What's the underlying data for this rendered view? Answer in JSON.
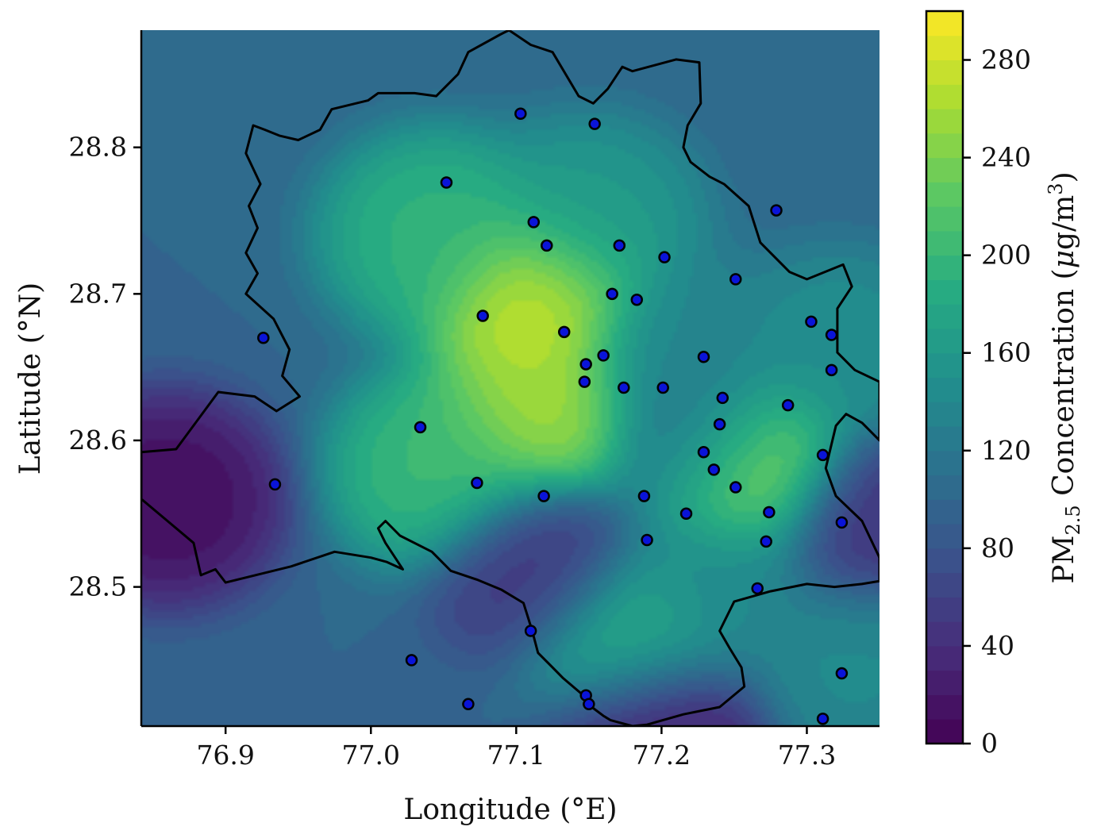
{
  "chart_data": {
    "type": "heatmap",
    "title": "",
    "xlabel": "Longitude (°E)",
    "ylabel": "Latitude (°N)",
    "xlim": [
      76.842,
      77.35
    ],
    "ylim": [
      28.405,
      28.88
    ],
    "x_ticks": [
      "76.9",
      "77.0",
      "77.1",
      "77.2",
      "77.3"
    ],
    "y_ticks": [
      "28.5",
      "28.6",
      "28.7",
      "28.8"
    ],
    "x_tick_values": [
      76.9,
      77.0,
      77.1,
      77.2,
      77.3
    ],
    "y_tick_values": [
      28.5,
      28.6,
      28.7,
      28.8
    ],
    "colorbar": {
      "label_pre": "PM",
      "label_sub": "2.5",
      "label_mid": " Concentration (",
      "label_mu": "μ",
      "label_unit": "g/m",
      "label_sup": "3",
      "label_post": ")",
      "range": [
        0,
        300
      ],
      "ticks": [
        "0",
        "40",
        "80",
        "120",
        "160",
        "200",
        "240",
        "280"
      ],
      "tick_values": [
        0,
        40,
        80,
        120,
        160,
        200,
        240,
        280
      ],
      "colormap": "viridis"
    },
    "grid": false,
    "hotspots": [
      {
        "lon": 77.115,
        "lat": 28.695,
        "value": 290
      },
      {
        "lon": 77.12,
        "lat": 28.62,
        "value": 270
      },
      {
        "lon": 77.26,
        "lat": 28.582,
        "value": 295
      },
      {
        "lon": 77.05,
        "lat": 28.58,
        "value": 210
      },
      {
        "lon": 77.045,
        "lat": 28.74,
        "value": 200
      },
      {
        "lon": 77.18,
        "lat": 28.465,
        "value": 200
      },
      {
        "lon": 77.15,
        "lat": 28.75,
        "value": 165
      },
      {
        "lon": 77.21,
        "lat": 28.66,
        "value": 140
      },
      {
        "lon": 77.32,
        "lat": 28.66,
        "value": 150
      },
      {
        "lon": 77.33,
        "lat": 28.45,
        "value": 145
      },
      {
        "lon": 77.24,
        "lat": 28.5,
        "value": 140
      },
      {
        "lon": 76.86,
        "lat": 28.56,
        "value": 5
      },
      {
        "lon": 77.2,
        "lat": 28.405,
        "value": 15
      },
      {
        "lon": 77.115,
        "lat": 28.515,
        "value": 45
      },
      {
        "lon": 77.34,
        "lat": 28.545,
        "value": 40
      },
      {
        "lon": 77.23,
        "lat": 28.6,
        "value": 90
      }
    ],
    "stations": [
      {
        "lon": 77.103,
        "lat": 28.823
      },
      {
        "lon": 77.154,
        "lat": 28.816
      },
      {
        "lon": 77.052,
        "lat": 28.776
      },
      {
        "lon": 77.279,
        "lat": 28.757
      },
      {
        "lon": 77.112,
        "lat": 28.749
      },
      {
        "lon": 77.121,
        "lat": 28.733
      },
      {
        "lon": 77.171,
        "lat": 28.733
      },
      {
        "lon": 77.202,
        "lat": 28.725
      },
      {
        "lon": 77.251,
        "lat": 28.71
      },
      {
        "lon": 77.166,
        "lat": 28.7
      },
      {
        "lon": 77.183,
        "lat": 28.696
      },
      {
        "lon": 77.077,
        "lat": 28.685
      },
      {
        "lon": 77.303,
        "lat": 28.681
      },
      {
        "lon": 77.133,
        "lat": 28.674
      },
      {
        "lon": 77.317,
        "lat": 28.672
      },
      {
        "lon": 76.926,
        "lat": 28.67
      },
      {
        "lon": 77.16,
        "lat": 28.658
      },
      {
        "lon": 77.229,
        "lat": 28.657
      },
      {
        "lon": 77.148,
        "lat": 28.652
      },
      {
        "lon": 77.317,
        "lat": 28.648
      },
      {
        "lon": 77.147,
        "lat": 28.64
      },
      {
        "lon": 77.174,
        "lat": 28.636
      },
      {
        "lon": 77.201,
        "lat": 28.636
      },
      {
        "lon": 77.242,
        "lat": 28.629
      },
      {
        "lon": 77.287,
        "lat": 28.624
      },
      {
        "lon": 77.24,
        "lat": 28.611
      },
      {
        "lon": 77.034,
        "lat": 28.609
      },
      {
        "lon": 77.229,
        "lat": 28.592
      },
      {
        "lon": 77.311,
        "lat": 28.59
      },
      {
        "lon": 77.236,
        "lat": 28.58
      },
      {
        "lon": 77.073,
        "lat": 28.571
      },
      {
        "lon": 76.934,
        "lat": 28.57
      },
      {
        "lon": 77.251,
        "lat": 28.568
      },
      {
        "lon": 77.119,
        "lat": 28.562
      },
      {
        "lon": 77.188,
        "lat": 28.562
      },
      {
        "lon": 77.274,
        "lat": 28.551
      },
      {
        "lon": 77.217,
        "lat": 28.55
      },
      {
        "lon": 77.324,
        "lat": 28.544
      },
      {
        "lon": 77.19,
        "lat": 28.532
      },
      {
        "lon": 77.272,
        "lat": 28.531
      },
      {
        "lon": 77.266,
        "lat": 28.499
      },
      {
        "lon": 77.11,
        "lat": 28.47
      },
      {
        "lon": 77.028,
        "lat": 28.45
      },
      {
        "lon": 77.324,
        "lat": 28.441
      },
      {
        "lon": 77.148,
        "lat": 28.426
      },
      {
        "lon": 77.067,
        "lat": 28.42
      },
      {
        "lon": 77.15,
        "lat": 28.42
      },
      {
        "lon": 77.311,
        "lat": 28.41
      }
    ],
    "boundary": [
      [
        77.095,
        28.88
      ],
      [
        77.089,
        28.877
      ],
      [
        77.067,
        28.865
      ],
      [
        77.06,
        28.85
      ],
      [
        77.045,
        28.835
      ],
      [
        77.03,
        28.837
      ],
      [
        77.005,
        28.837
      ],
      [
        76.998,
        28.832
      ],
      [
        76.973,
        28.826
      ],
      [
        76.965,
        28.812
      ],
      [
        76.95,
        28.805
      ],
      [
        76.937,
        28.808
      ],
      [
        76.927,
        28.812
      ],
      [
        76.919,
        28.815
      ],
      [
        76.914,
        28.796
      ],
      [
        76.924,
        28.775
      ],
      [
        76.916,
        28.76
      ],
      [
        76.922,
        28.745
      ],
      [
        76.914,
        28.728
      ],
      [
        76.922,
        28.714
      ],
      [
        76.914,
        28.7
      ],
      [
        76.933,
        28.683
      ],
      [
        76.944,
        28.662
      ],
      [
        76.939,
        28.644
      ],
      [
        76.951,
        28.63
      ],
      [
        76.935,
        28.62
      ],
      [
        76.92,
        28.63
      ],
      [
        76.895,
        28.633
      ],
      [
        76.866,
        28.594
      ],
      [
        76.842,
        28.592
      ],
      [
        76.842,
        28.56
      ],
      [
        76.86,
        28.545
      ],
      [
        76.878,
        28.53
      ],
      [
        76.883,
        28.508
      ],
      [
        76.893,
        28.512
      ],
      [
        76.9,
        28.503
      ],
      [
        76.945,
        28.514
      ],
      [
        76.975,
        28.524
      ],
      [
        77.0,
        28.52
      ],
      [
        77.011,
        28.517
      ],
      [
        77.022,
        28.512
      ],
      [
        77.01,
        28.53
      ],
      [
        77.005,
        28.54
      ],
      [
        77.01,
        28.545
      ],
      [
        77.02,
        28.535
      ],
      [
        77.042,
        28.524
      ],
      [
        77.055,
        28.511
      ],
      [
        77.073,
        28.505
      ],
      [
        77.09,
        28.498
      ],
      [
        77.105,
        28.489
      ],
      [
        77.111,
        28.47
      ],
      [
        77.115,
        28.455
      ],
      [
        77.125,
        28.445
      ],
      [
        77.132,
        28.438
      ],
      [
        77.145,
        28.427
      ],
      [
        77.152,
        28.418
      ],
      [
        77.16,
        28.412
      ],
      [
        77.165,
        28.409
      ],
      [
        77.18,
        28.405
      ],
      [
        77.19,
        28.406
      ],
      [
        77.215,
        28.413
      ],
      [
        77.24,
        28.418
      ],
      [
        77.257,
        28.432
      ],
      [
        77.255,
        28.445
      ],
      [
        77.247,
        28.458
      ],
      [
        77.24,
        28.47
      ],
      [
        77.25,
        28.49
      ],
      [
        77.275,
        28.497
      ],
      [
        77.3,
        28.502
      ],
      [
        77.319,
        28.5
      ],
      [
        77.338,
        28.502
      ],
      [
        77.35,
        28.504
      ],
      [
        77.35,
        28.52
      ],
      [
        77.338,
        28.545
      ],
      [
        77.32,
        28.562
      ],
      [
        77.313,
        28.581
      ],
      [
        77.32,
        28.61
      ],
      [
        77.327,
        28.618
      ],
      [
        77.338,
        28.612
      ],
      [
        77.35,
        28.6
      ],
      [
        77.35,
        28.64
      ],
      [
        77.333,
        28.648
      ],
      [
        77.321,
        28.66
      ],
      [
        77.321,
        28.69
      ],
      [
        77.331,
        28.705
      ],
      [
        77.325,
        28.72
      ],
      [
        77.3,
        28.71
      ],
      [
        77.288,
        28.715
      ],
      [
        77.268,
        28.735
      ],
      [
        77.26,
        28.76
      ],
      [
        77.243,
        28.775
      ],
      [
        77.233,
        28.78
      ],
      [
        77.22,
        28.79
      ],
      [
        77.215,
        28.8
      ],
      [
        77.218,
        28.815
      ],
      [
        77.227,
        28.83
      ],
      [
        77.226,
        28.858
      ],
      [
        77.21,
        28.86
      ],
      [
        77.18,
        28.852
      ],
      [
        77.173,
        28.855
      ],
      [
        77.163,
        28.84
      ],
      [
        77.153,
        28.83
      ],
      [
        77.143,
        28.835
      ],
      [
        77.125,
        28.865
      ],
      [
        77.11,
        28.87
      ]
    ]
  }
}
